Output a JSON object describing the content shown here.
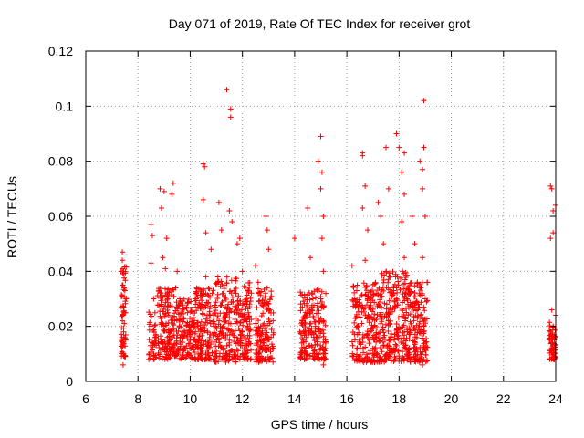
{
  "chart_data": {
    "type": "scatter",
    "title": "Day 071 of 2019, Rate Of TEC Index for receiver grot",
    "xlabel": "GPS time / hours",
    "ylabel": "ROTI / TECUs",
    "xlim": [
      6,
      24
    ],
    "ylim": [
      0,
      0.12
    ],
    "x_ticks": [
      6,
      8,
      10,
      12,
      14,
      16,
      18,
      20,
      22,
      24
    ],
    "x_tick_labels": [
      "6",
      "8",
      "10",
      "12",
      "14",
      "16",
      "18",
      "20",
      "22",
      "24"
    ],
    "y_ticks": [
      0,
      0.02,
      0.04,
      0.06,
      0.08,
      0.1,
      0.12
    ],
    "y_tick_labels": [
      "0",
      "0.02",
      "0.04",
      "0.06",
      "0.08",
      "0.1",
      "0.12"
    ],
    "grid": true,
    "marker": "plus",
    "color": "#ff0000",
    "points": [
      [
        7.4,
        0.047
      ],
      [
        7.4,
        0.044
      ],
      [
        7.45,
        0.04
      ],
      [
        7.42,
        0.035
      ],
      [
        7.4,
        0.031
      ],
      [
        7.45,
        0.027
      ],
      [
        7.4,
        0.022
      ],
      [
        7.45,
        0.018
      ],
      [
        7.4,
        0.014
      ],
      [
        7.45,
        0.01
      ],
      [
        7.43,
        0.006
      ],
      [
        7.5,
        0.033
      ],
      [
        7.38,
        0.016
      ],
      [
        7.48,
        0.025
      ],
      [
        8.5,
        0.057
      ],
      [
        8.55,
        0.053
      ],
      [
        8.5,
        0.043
      ],
      [
        8.6,
        0.03
      ],
      [
        8.5,
        0.02
      ],
      [
        8.55,
        0.014
      ],
      [
        8.6,
        0.01
      ],
      [
        8.85,
        0.07
      ],
      [
        9.0,
        0.069
      ],
      [
        8.9,
        0.063
      ],
      [
        8.95,
        0.045
      ],
      [
        9.1,
        0.052
      ],
      [
        9.05,
        0.041
      ],
      [
        8.9,
        0.028
      ],
      [
        9.0,
        0.02
      ],
      [
        9.1,
        0.012
      ],
      [
        9.2,
        0.016
      ],
      [
        9.3,
        0.01
      ],
      [
        9.4,
        0.022
      ],
      [
        9.35,
        0.072
      ],
      [
        9.3,
        0.068
      ],
      [
        9.5,
        0.04
      ],
      [
        9.6,
        0.03
      ],
      [
        9.7,
        0.018
      ],
      [
        9.8,
        0.012
      ],
      [
        9.9,
        0.025
      ],
      [
        10.0,
        0.015
      ],
      [
        10.1,
        0.02
      ],
      [
        10.2,
        0.028
      ],
      [
        10.3,
        0.012
      ],
      [
        10.4,
        0.018
      ],
      [
        10.5,
        0.079
      ],
      [
        10.55,
        0.078
      ],
      [
        10.5,
        0.066
      ],
      [
        10.6,
        0.054
      ],
      [
        10.6,
        0.038
      ],
      [
        10.65,
        0.024
      ],
      [
        10.7,
        0.014
      ],
      [
        10.8,
        0.048
      ],
      [
        10.9,
        0.02
      ],
      [
        11.0,
        0.011
      ],
      [
        11.1,
        0.065
      ],
      [
        11.2,
        0.055
      ],
      [
        11.3,
        0.035
      ],
      [
        11.4,
        0.106
      ],
      [
        11.55,
        0.099
      ],
      [
        11.55,
        0.096
      ],
      [
        11.5,
        0.062
      ],
      [
        11.6,
        0.058
      ],
      [
        11.4,
        0.025
      ],
      [
        11.5,
        0.015
      ],
      [
        11.6,
        0.009
      ],
      [
        11.8,
        0.05
      ],
      [
        11.9,
        0.052
      ],
      [
        12.0,
        0.04
      ],
      [
        12.1,
        0.028
      ],
      [
        12.0,
        0.018
      ],
      [
        12.1,
        0.01
      ],
      [
        12.5,
        0.042
      ],
      [
        12.6,
        0.036
      ],
      [
        12.7,
        0.02
      ],
      [
        12.8,
        0.014
      ],
      [
        12.9,
        0.06
      ],
      [
        12.95,
        0.055
      ],
      [
        13.0,
        0.048
      ],
      [
        13.05,
        0.026
      ],
      [
        13.1,
        0.016
      ],
      [
        13.0,
        0.008
      ],
      [
        14.0,
        0.052
      ],
      [
        14.2,
        0.018
      ],
      [
        14.3,
        0.011
      ],
      [
        14.5,
        0.063
      ],
      [
        14.6,
        0.045
      ],
      [
        14.7,
        0.03
      ],
      [
        14.8,
        0.02
      ],
      [
        14.9,
        0.08
      ],
      [
        15.0,
        0.089
      ],
      [
        15.05,
        0.076
      ],
      [
        15.0,
        0.07
      ],
      [
        15.1,
        0.06
      ],
      [
        15.05,
        0.052
      ],
      [
        15.1,
        0.04
      ],
      [
        15.0,
        0.03
      ],
      [
        15.1,
        0.022
      ],
      [
        15.0,
        0.012
      ],
      [
        15.1,
        0.006
      ],
      [
        16.2,
        0.042
      ],
      [
        16.3,
        0.03
      ],
      [
        16.4,
        0.02
      ],
      [
        16.5,
        0.012
      ],
      [
        16.6,
        0.083
      ],
      [
        16.6,
        0.082
      ],
      [
        16.7,
        0.071
      ],
      [
        16.6,
        0.063
      ],
      [
        16.8,
        0.055
      ],
      [
        16.7,
        0.044
      ],
      [
        16.8,
        0.03
      ],
      [
        16.9,
        0.018
      ],
      [
        17.0,
        0.01
      ],
      [
        17.2,
        0.065
      ],
      [
        17.3,
        0.06
      ],
      [
        17.4,
        0.05
      ],
      [
        17.5,
        0.085
      ],
      [
        17.6,
        0.07
      ],
      [
        17.5,
        0.04
      ],
      [
        17.6,
        0.022
      ],
      [
        17.7,
        0.012
      ],
      [
        17.9,
        0.09
      ],
      [
        18.0,
        0.085
      ],
      [
        18.2,
        0.083
      ],
      [
        18.1,
        0.076
      ],
      [
        18.2,
        0.068
      ],
      [
        18.1,
        0.058
      ],
      [
        18.2,
        0.045
      ],
      [
        18.3,
        0.03
      ],
      [
        18.2,
        0.018
      ],
      [
        18.3,
        0.01
      ],
      [
        18.5,
        0.06
      ],
      [
        18.6,
        0.05
      ],
      [
        18.7,
        0.036
      ],
      [
        18.8,
        0.08
      ],
      [
        18.9,
        0.077
      ],
      [
        18.95,
        0.085
      ],
      [
        18.9,
        0.07
      ],
      [
        18.95,
        0.102
      ],
      [
        19.0,
        0.06
      ],
      [
        18.9,
        0.045
      ],
      [
        19.0,
        0.03
      ],
      [
        18.95,
        0.02
      ],
      [
        19.0,
        0.012
      ],
      [
        18.9,
        0.006
      ],
      [
        23.8,
        0.071
      ],
      [
        23.85,
        0.07
      ],
      [
        23.9,
        0.062
      ],
      [
        24.0,
        0.064
      ],
      [
        23.9,
        0.054
      ],
      [
        23.8,
        0.052
      ],
      [
        23.85,
        0.026
      ],
      [
        23.9,
        0.02
      ],
      [
        24.0,
        0.016
      ],
      [
        23.85,
        0.012
      ],
      [
        23.95,
        0.008
      ],
      [
        23.8,
        0.018
      ],
      [
        24.0,
        0.024
      ]
    ],
    "clusters": [
      {
        "x_range": [
          7.35,
          7.55
        ],
        "y_range": [
          0.008,
          0.042
        ],
        "count": 60
      },
      {
        "x_range": [
          8.4,
          8.7
        ],
        "y_range": [
          0.008,
          0.026
        ],
        "count": 40
      },
      {
        "x_range": [
          8.75,
          9.45
        ],
        "y_range": [
          0.008,
          0.034
        ],
        "count": 150
      },
      {
        "x_range": [
          9.45,
          10.2
        ],
        "y_range": [
          0.008,
          0.03
        ],
        "count": 150
      },
      {
        "x_range": [
          10.2,
          10.9
        ],
        "y_range": [
          0.008,
          0.034
        ],
        "count": 150
      },
      {
        "x_range": [
          10.9,
          11.8
        ],
        "y_range": [
          0.007,
          0.038
        ],
        "count": 180
      },
      {
        "x_range": [
          11.8,
          12.35
        ],
        "y_range": [
          0.008,
          0.036
        ],
        "count": 120
      },
      {
        "x_range": [
          12.5,
          13.2
        ],
        "y_range": [
          0.007,
          0.034
        ],
        "count": 150
      },
      {
        "x_range": [
          14.2,
          15.2
        ],
        "y_range": [
          0.008,
          0.034
        ],
        "count": 200
      },
      {
        "x_range": [
          16.2,
          17.3
        ],
        "y_range": [
          0.007,
          0.036
        ],
        "count": 220
      },
      {
        "x_range": [
          17.3,
          18.3
        ],
        "y_range": [
          0.007,
          0.04
        ],
        "count": 220
      },
      {
        "x_range": [
          18.3,
          19.1
        ],
        "y_range": [
          0.007,
          0.036
        ],
        "count": 180
      },
      {
        "x_range": [
          23.75,
          24.0
        ],
        "y_range": [
          0.008,
          0.022
        ],
        "count": 60
      }
    ]
  }
}
